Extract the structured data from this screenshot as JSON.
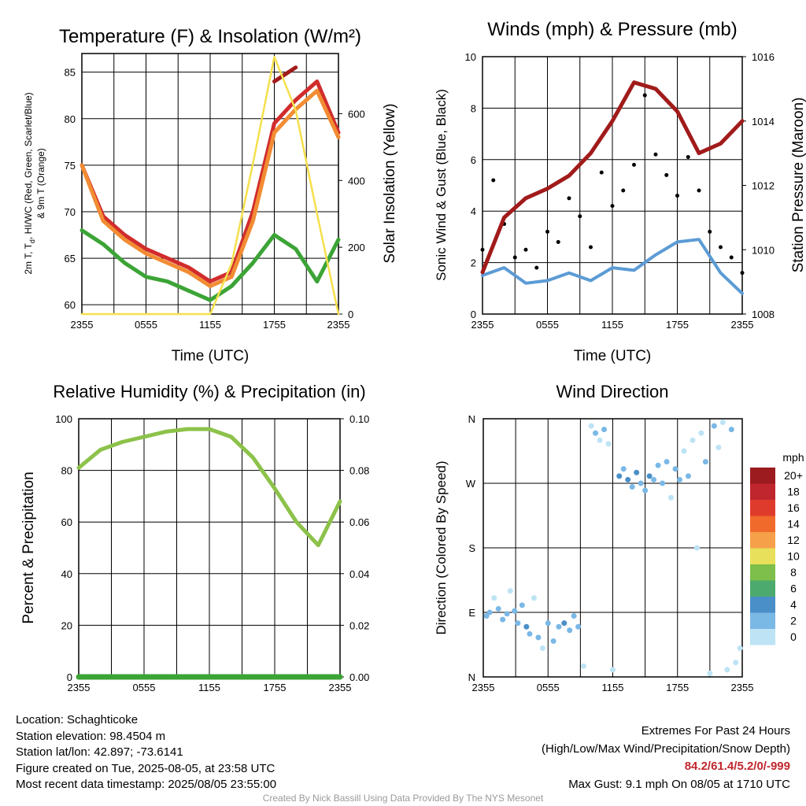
{
  "footer": {
    "location": "Location: Schaghticoke",
    "elevation": "Station elevation: 98.4504 m",
    "latlon": "Station lat/lon: 42.897; -73.6141",
    "created": "Figure created on Tue, 2025-08-05, at 23:58 UTC",
    "recent": "Most recent data timestamp: 2025/08/05 23:55:00",
    "extremes_title": "Extremes For Past 24 Hours",
    "extremes_legend": "(High/Low/Max Wind/Precipitation/Snow Depth)",
    "extremes_values": "84.2/61.4/5.2/0/-999",
    "max_gust": "Max Gust: 9.1 mph On 08/05 at 1710 UTC",
    "credit": "Created By Nick Bassill Using Data Provided By The NYS Mesonet"
  },
  "chart_data": [
    {
      "id": "temperature",
      "type": "line",
      "title": "Temperature (F) & Insolation (W/m²)",
      "xlabel": "Time (UTC)",
      "ylabel": [
        "2m T, T",
        "d",
        ", HI/WC (Red, Green, Scarlet/Blue)",
        "& 9m T (Orange)"
      ],
      "y2label": "Solar Insolation (Yellow)",
      "x_ticks": [
        "2355",
        "0555",
        "1155",
        "1755",
        "2355"
      ],
      "x": [
        0,
        2,
        4,
        6,
        8,
        10,
        12,
        14,
        16,
        18,
        20,
        22,
        24
      ],
      "ylim": [
        59,
        87
      ],
      "y_ticks": [
        60,
        65,
        70,
        75,
        80,
        85
      ],
      "y2lim": [
        0,
        780
      ],
      "y2_ticks": [
        0,
        200,
        400,
        600
      ],
      "series": [
        {
          "color": "#d12c2c",
          "values": [
            75,
            69.5,
            67.5,
            66,
            65,
            64,
            62.5,
            63.5,
            70,
            79.5,
            82,
            84,
            78.5
          ]
        },
        {
          "color": "#f28c33",
          "values": [
            75,
            69,
            67,
            65.5,
            64.5,
            63.5,
            62,
            63,
            69,
            78.5,
            81,
            83,
            78
          ]
        },
        {
          "color": "#3ca436",
          "values": [
            68,
            66.5,
            64.5,
            63,
            62.5,
            61.5,
            60.5,
            62,
            64.5,
            67.5,
            66,
            62.5,
            67
          ]
        },
        {
          "color": "#a11b1b",
          "values": [
            null,
            null,
            null,
            null,
            null,
            null,
            null,
            null,
            null,
            84,
            85.5,
            null,
            null
          ]
        },
        {
          "color": "#f5e04c",
          "axis": "y2",
          "values": [
            0,
            0,
            0,
            0,
            0,
            0,
            0,
            150,
            450,
            770,
            610,
            300,
            0
          ]
        }
      ]
    },
    {
      "id": "wind",
      "type": "line",
      "title": "Winds (mph) & Pressure (mb)",
      "xlabel": "Time (UTC)",
      "ylabel": "Sonic Wind & Gust (Blue, Black)",
      "y2label": "Station Pressure (Maroon)",
      "x_ticks": [
        "2355",
        "0555",
        "1155",
        "1755",
        "2355"
      ],
      "ylim": [
        0,
        10
      ],
      "y_ticks": [
        0,
        2,
        4,
        6,
        8,
        10
      ],
      "y2lim": [
        1008,
        1016
      ],
      "y2_ticks": [
        1008,
        1010,
        1012,
        1014,
        1016
      ],
      "series": [
        {
          "name": "Sonic Wind",
          "color": "#5b9bd5",
          "x": [
            0,
            2,
            4,
            6,
            8,
            10,
            12,
            14,
            16,
            18,
            20,
            22,
            24
          ],
          "values": [
            1.5,
            1.8,
            1.2,
            1.3,
            1.6,
            1.3,
            1.8,
            1.7,
            2.3,
            2.8,
            2.9,
            1.6,
            0.8
          ]
        },
        {
          "name": "Gust",
          "color": "#000000",
          "x": [
            0,
            1,
            2,
            3,
            4,
            5,
            6,
            7,
            8,
            9,
            10,
            11,
            12,
            13,
            14,
            15,
            16,
            17,
            18,
            19,
            20,
            21,
            22,
            23,
            24
          ],
          "values": [
            2.5,
            5.2,
            3.5,
            2.2,
            2.5,
            1.8,
            3.2,
            2.8,
            4.5,
            3.8,
            2.6,
            5.5,
            4.2,
            4.8,
            5.8,
            8.5,
            6.2,
            5.4,
            4.6,
            6.1,
            4.8,
            3.2,
            2.6,
            2.2,
            1.6
          ]
        },
        {
          "name": "Pressure",
          "color": "#a11b1b",
          "axis": "y2",
          "x": [
            0,
            2,
            4,
            6,
            8,
            10,
            12,
            14,
            16,
            18,
            20,
            22,
            24
          ],
          "values": [
            1009.3,
            1011.0,
            1011.6,
            1011.9,
            1012.3,
            1013.0,
            1014.0,
            1015.2,
            1015.0,
            1014.3,
            1013.0,
            1013.3,
            1014.0
          ]
        }
      ]
    },
    {
      "id": "humidity",
      "type": "line",
      "title": "Relative Humidity (%) & Precipitation (in)",
      "xlabel": "",
      "ylabel": "Percent & Precipitation",
      "x_ticks": [
        "2355",
        "0555",
        "1155",
        "1755",
        "2355"
      ],
      "ylim": [
        0,
        100
      ],
      "y_ticks": [
        0,
        20,
        40,
        60,
        80,
        100
      ],
      "y2lim": [
        0,
        0.1
      ],
      "y2_ticks": [
        "0.00",
        "0.02",
        "0.04",
        "0.06",
        "0.08",
        "0.10"
      ],
      "series": [
        {
          "color": "#8cc24a",
          "x": [
            0,
            2,
            4,
            6,
            8,
            10,
            12,
            14,
            16,
            18,
            20,
            22,
            24
          ],
          "values": [
            81,
            88,
            91,
            93,
            95,
            96,
            96,
            93,
            85,
            73,
            60,
            51,
            68
          ]
        },
        {
          "color": "#3ca436",
          "axis": "y2",
          "x": [
            0,
            24
          ],
          "values": [
            0,
            0
          ]
        }
      ]
    },
    {
      "id": "direction",
      "type": "scatter",
      "title": "Wind Direction",
      "ylabel": "Direction (Colored By Speed)",
      "x_ticks": [
        "2355",
        "0555",
        "1155",
        "1755",
        "2355"
      ],
      "y_ticks": [
        "N",
        "E",
        "S",
        "W",
        "N"
      ],
      "ylim": [
        0,
        360
      ],
      "colorbar": {
        "unit": "mph",
        "labels": [
          "20+",
          "18",
          "16",
          "14",
          "12",
          "10",
          "8",
          "6",
          "4",
          "2",
          "0"
        ],
        "colors": [
          "#9b1b1e",
          "#c0262d",
          "#df3b2c",
          "#f06a2c",
          "#f6a04a",
          "#e8e05a",
          "#7dbf4a",
          "#4caa6e",
          "#4a8fc8",
          "#7ab8e6",
          "#bde3f5"
        ]
      },
      "points": [
        {
          "x": 0.3,
          "y": 85,
          "s": 2
        },
        {
          "x": 0.6,
          "y": 90,
          "s": 3
        },
        {
          "x": 1.0,
          "y": 110,
          "s": 1
        },
        {
          "x": 1.4,
          "y": 95,
          "s": 2
        },
        {
          "x": 1.8,
          "y": 80,
          "s": 2
        },
        {
          "x": 2.2,
          "y": 88,
          "s": 3
        },
        {
          "x": 2.5,
          "y": 120,
          "s": 1
        },
        {
          "x": 2.9,
          "y": 92,
          "s": 3
        },
        {
          "x": 3.2,
          "y": 75,
          "s": 2
        },
        {
          "x": 3.6,
          "y": 100,
          "s": 2
        },
        {
          "x": 4.0,
          "y": 70,
          "s": 4
        },
        {
          "x": 4.3,
          "y": 60,
          "s": 2
        },
        {
          "x": 4.7,
          "y": 110,
          "s": 1
        },
        {
          "x": 5.1,
          "y": 55,
          "s": 2
        },
        {
          "x": 5.5,
          "y": 40,
          "s": 1
        },
        {
          "x": 6.0,
          "y": 75,
          "s": 3
        },
        {
          "x": 6.5,
          "y": 50,
          "s": 2
        },
        {
          "x": 7.0,
          "y": 70,
          "s": 3
        },
        {
          "x": 7.5,
          "y": 75,
          "s": 4
        },
        {
          "x": 8.0,
          "y": 65,
          "s": 3
        },
        {
          "x": 8.4,
          "y": 85,
          "s": 2
        },
        {
          "x": 8.8,
          "y": 70,
          "s": 2
        },
        {
          "x": 9.3,
          "y": 15,
          "s": 1
        },
        {
          "x": 10.0,
          "y": 350,
          "s": 1
        },
        {
          "x": 10.4,
          "y": 340,
          "s": 2
        },
        {
          "x": 10.8,
          "y": 330,
          "s": 1
        },
        {
          "x": 11.2,
          "y": 345,
          "s": 2
        },
        {
          "x": 11.6,
          "y": 325,
          "s": 1
        },
        {
          "x": 12.0,
          "y": 10,
          "s": 1
        },
        {
          "x": 12.6,
          "y": 280,
          "s": 4
        },
        {
          "x": 13.0,
          "y": 290,
          "s": 3
        },
        {
          "x": 13.4,
          "y": 275,
          "s": 4
        },
        {
          "x": 13.8,
          "y": 265,
          "s": 3
        },
        {
          "x": 14.2,
          "y": 285,
          "s": 4
        },
        {
          "x": 14.6,
          "y": 270,
          "s": 3
        },
        {
          "x": 15.0,
          "y": 260,
          "s": 2
        },
        {
          "x": 15.4,
          "y": 280,
          "s": 4
        },
        {
          "x": 15.8,
          "y": 275,
          "s": 3
        },
        {
          "x": 16.2,
          "y": 295,
          "s": 2
        },
        {
          "x": 16.6,
          "y": 270,
          "s": 3
        },
        {
          "x": 17.0,
          "y": 300,
          "s": 2
        },
        {
          "x": 17.4,
          "y": 250,
          "s": 1
        },
        {
          "x": 17.8,
          "y": 290,
          "s": 2
        },
        {
          "x": 18.2,
          "y": 275,
          "s": 3
        },
        {
          "x": 18.6,
          "y": 315,
          "s": 1
        },
        {
          "x": 19.0,
          "y": 280,
          "s": 2
        },
        {
          "x": 19.4,
          "y": 330,
          "s": 1
        },
        {
          "x": 19.8,
          "y": 180,
          "s": 1
        },
        {
          "x": 20.2,
          "y": 340,
          "s": 1
        },
        {
          "x": 20.6,
          "y": 300,
          "s": 2
        },
        {
          "x": 21.0,
          "y": 5,
          "s": 1
        },
        {
          "x": 21.4,
          "y": 350,
          "s": 2
        },
        {
          "x": 21.8,
          "y": 320,
          "s": 1
        },
        {
          "x": 22.2,
          "y": 355,
          "s": 1
        },
        {
          "x": 22.6,
          "y": 10,
          "s": 1
        },
        {
          "x": 23.0,
          "y": 345,
          "s": 2
        },
        {
          "x": 23.4,
          "y": 20,
          "s": 1
        },
        {
          "x": 23.8,
          "y": 40,
          "s": 1
        }
      ]
    }
  ]
}
